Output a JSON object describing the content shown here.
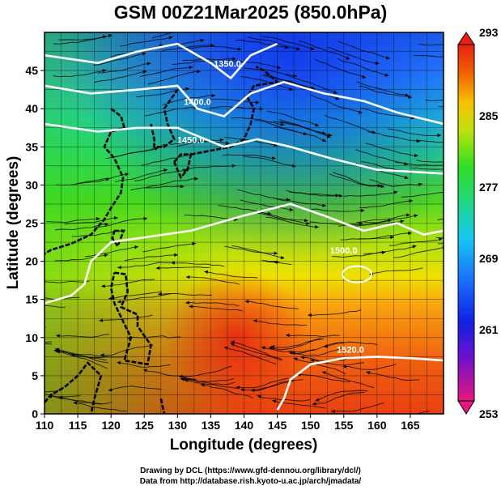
{
  "title": "GSM 00Z21Mar2025 (850.0hPa)",
  "x_axis": {
    "label": "Longitude (degrees)",
    "ticks": [
      "110",
      "115",
      "120",
      "125",
      "130",
      "135",
      "140",
      "145",
      "150",
      "155",
      "160",
      "165"
    ]
  },
  "y_axis": {
    "label": "Latitude  (degrees)",
    "ticks": [
      "0",
      "5",
      "10",
      "15",
      "20",
      "25",
      "30",
      "35",
      "40",
      "45"
    ]
  },
  "colorbar": {
    "ticks": [
      "293",
      "285",
      "277",
      "269",
      "261",
      "253"
    ],
    "colors": [
      "#e0187a",
      "#3020d8",
      "#1040ff",
      "#1a8cff",
      "#18d0f0",
      "#20d890",
      "#30e020",
      "#a0e010",
      "#f0e000",
      "#f8a000",
      "#f05a00",
      "#e82010"
    ]
  },
  "contour_labels": [
    {
      "text": "1350.0"
    },
    {
      "text": "1400.0"
    },
    {
      "text": "1450.0"
    },
    {
      "text": "1500.0"
    },
    {
      "text": "1520.0"
    }
  ],
  "credits": {
    "line1": "Drawing by DCL (https://www.gfd-dennou.org/library/dcl/)",
    "line2": "Data from http://database.rish.kyoto-u.ac.jp/arch/jmadata/"
  }
}
